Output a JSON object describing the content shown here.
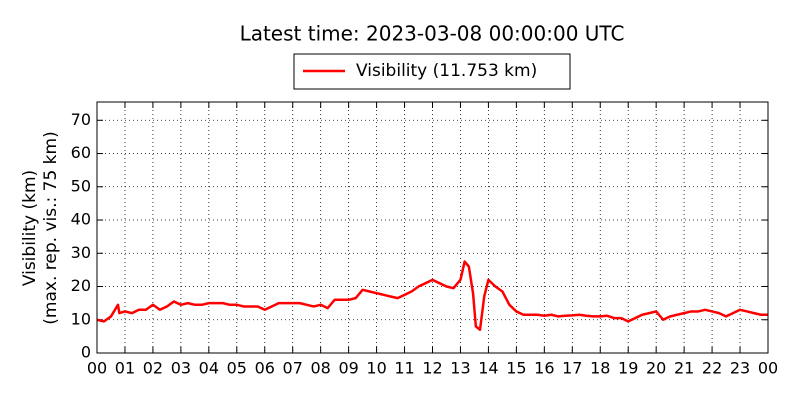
{
  "chart_data": {
    "type": "line",
    "title": "Latest time: 2023-03-08 00:00:00 UTC",
    "ylabel": [
      "Visibility (km)",
      "(max. rep. vis.: 75 km)"
    ],
    "x": [
      0,
      0.25,
      0.5,
      0.75,
      0.8,
      1,
      1.25,
      1.5,
      1.75,
      2,
      2.25,
      2.5,
      2.75,
      3,
      3.25,
      3.5,
      3.75,
      4,
      4.25,
      4.5,
      4.75,
      5,
      5.25,
      5.5,
      5.75,
      6,
      6.25,
      6.5,
      6.75,
      7,
      7.25,
      7.5,
      7.75,
      8,
      8.25,
      8.5,
      8.75,
      9,
      9.25,
      9.5,
      9.75,
      10,
      10.25,
      10.5,
      10.75,
      11,
      11.25,
      11.5,
      11.75,
      12,
      12.25,
      12.5,
      12.75,
      13,
      13.15,
      13.3,
      13.45,
      13.55,
      13.7,
      13.85,
      14,
      14.25,
      14.5,
      14.75,
      15,
      15.25,
      15.5,
      15.75,
      16,
      16.25,
      16.5,
      16.75,
      17,
      17.25,
      17.5,
      17.75,
      18,
      18.25,
      18.5,
      18.75,
      19,
      19.25,
      19.5,
      19.75,
      20,
      20.25,
      20.5,
      20.75,
      21,
      21.25,
      21.5,
      21.75,
      22,
      22.25,
      22.5,
      22.75,
      23,
      23.25,
      23.5,
      23.75,
      24
    ],
    "series": [
      {
        "name": "Visibility (11.753 km)",
        "color": "#ff0000",
        "values": [
          10,
          9.5,
          11,
          14.5,
          12,
          12.5,
          12,
          13,
          13,
          14.5,
          13,
          14,
          15.5,
          14.5,
          15,
          14.5,
          14.5,
          15,
          15,
          15,
          14.5,
          14.5,
          14,
          14,
          14,
          13,
          14,
          15,
          15,
          15,
          15,
          14.5,
          14,
          14.5,
          13.5,
          16,
          16,
          16,
          16.5,
          19,
          18.5,
          18,
          17.5,
          17,
          16.5,
          17.5,
          18.5,
          20,
          21,
          22,
          21,
          20,
          19.5,
          22,
          27.5,
          26,
          18,
          8,
          7,
          17,
          22,
          20,
          18.5,
          14.5,
          12.5,
          11.5,
          11.5,
          11.5,
          11.2,
          11.5,
          11,
          11.2,
          11.3,
          11.5,
          11.2,
          11,
          11,
          11.2,
          10.5,
          10.5,
          9.5,
          10.5,
          11.5,
          12,
          12.5,
          10,
          11,
          11.5,
          12,
          12.5,
          12.5,
          13,
          12.5,
          12,
          11,
          12,
          13,
          12.5,
          12,
          11.5,
          11.5
        ]
      }
    ],
    "xlim": [
      0,
      24
    ],
    "xticks": [
      {
        "value": 0,
        "label": "00"
      },
      {
        "value": 1,
        "label": "01"
      },
      {
        "value": 2,
        "label": "02"
      },
      {
        "value": 3,
        "label": "03"
      },
      {
        "value": 4,
        "label": "04"
      },
      {
        "value": 5,
        "label": "05"
      },
      {
        "value": 6,
        "label": "06"
      },
      {
        "value": 7,
        "label": "07"
      },
      {
        "value": 8,
        "label": "08"
      },
      {
        "value": 9,
        "label": "09"
      },
      10,
      11,
      12,
      13,
      14,
      15,
      16,
      17,
      18,
      19,
      20,
      21,
      22,
      23,
      {
        "value": 24,
        "label": "00"
      }
    ],
    "ylim": [
      0,
      75.5
    ],
    "yticks": [
      0,
      10,
      20,
      30,
      40,
      50,
      60,
      70
    ],
    "grid": true
  }
}
